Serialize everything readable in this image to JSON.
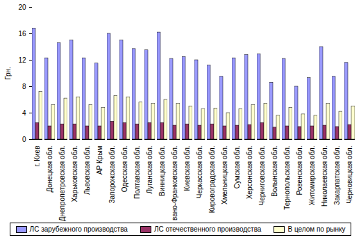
{
  "chart_data": {
    "type": "bar",
    "y_label": "Грн.",
    "categories": [
      "г. Киев",
      "Донецкая обл.",
      "Днепропетровская обл.",
      "Харьковская обл.",
      "Львовская обл.",
      "АР Крым",
      "Запорожская обл.",
      "Одесская обл.",
      "Полтавская обл.",
      "Луганская обл.",
      "Винницкая обл.",
      "Ивано-Франковская обл.",
      "Киевская обл.",
      "Черкасская обл.",
      "Кировоградская обл.",
      "Хмельницкая обл.",
      "Сумская обл.",
      "Херсонская обл.",
      "Черниговская обл.",
      "Волынская обл.",
      "Тернопольская обл.",
      "Ровенская обл.",
      "Житомирская обл.",
      "Николаевская обл.",
      "Закарпатская обл.",
      "Черновицкая обл."
    ],
    "series": [
      {
        "name": "ЛС зарубежного производства",
        "color": "#9999ff",
        "values": [
          16.8,
          12.3,
          14.6,
          15.0,
          12.3,
          11.5,
          16.0,
          15.0,
          13.7,
          13.5,
          16.2,
          12.2,
          12.5,
          12.0,
          11.2,
          9.5,
          12.3,
          12.8,
          12.9,
          8.6,
          12.2,
          8.0,
          9.3,
          14.0,
          9.5,
          11.6
        ]
      },
      {
        "name": "ЛС отечественного производства",
        "color": "#993366",
        "values": [
          2.5,
          2.0,
          2.3,
          2.3,
          2.0,
          2.0,
          2.7,
          2.5,
          2.3,
          2.5,
          2.5,
          2.1,
          2.3,
          2.1,
          2.3,
          2.0,
          2.1,
          2.2,
          2.5,
          1.8,
          2.0,
          1.9,
          2.0,
          2.1,
          1.9,
          2.2
        ]
      },
      {
        "name": "В целом по рынку",
        "color": "#ffffcc",
        "values": [
          7.2,
          5.2,
          6.2,
          6.4,
          5.2,
          4.8,
          6.6,
          6.4,
          5.6,
          5.4,
          6.0,
          5.4,
          5.0,
          4.6,
          4.7,
          4.0,
          4.6,
          5.2,
          5.4,
          3.6,
          4.8,
          3.8,
          3.6,
          5.4,
          4.2,
          5.0
        ]
      }
    ],
    "ylim": [
      0,
      20
    ],
    "yticks": [
      0,
      4,
      8,
      12,
      16,
      20
    ],
    "grid": false,
    "legend": "bottom"
  }
}
